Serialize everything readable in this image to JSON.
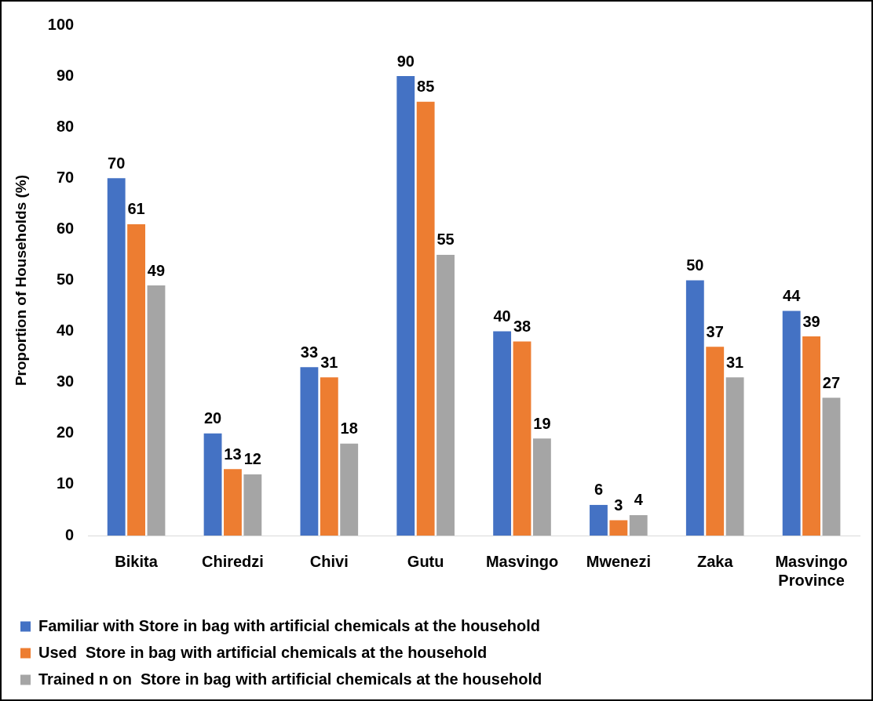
{
  "chart_data": {
    "type": "bar",
    "ylabel": "Proportion of Households (%)",
    "categories": [
      "Bikita",
      "Chiredzi",
      "Chivi",
      "Gutu",
      "Masvingo",
      "Mwenezi",
      "Zaka",
      "Masvingo Province"
    ],
    "series": [
      {
        "name": "Familiar with Store in bag with artificial chemicals at the household",
        "color": "#4472c4",
        "values": [
          70,
          20,
          33,
          90,
          40,
          6,
          50,
          44
        ]
      },
      {
        "name": "Used  Store in bag with artificial chemicals at the household",
        "color": "#ed7d31",
        "values": [
          61,
          13,
          31,
          85,
          38,
          3,
          37,
          39
        ]
      },
      {
        "name": "Trained n on  Store in bag with artificial chemicals at the household",
        "color": "#a5a5a5",
        "values": [
          49,
          12,
          18,
          55,
          19,
          4,
          31,
          27
        ]
      }
    ],
    "ylim": [
      0,
      100
    ],
    "yticks": [
      0,
      10,
      20,
      30,
      40,
      50,
      60,
      70,
      80,
      90,
      100
    ],
    "grid": false,
    "legend": "bottom",
    "data_labels": true
  }
}
